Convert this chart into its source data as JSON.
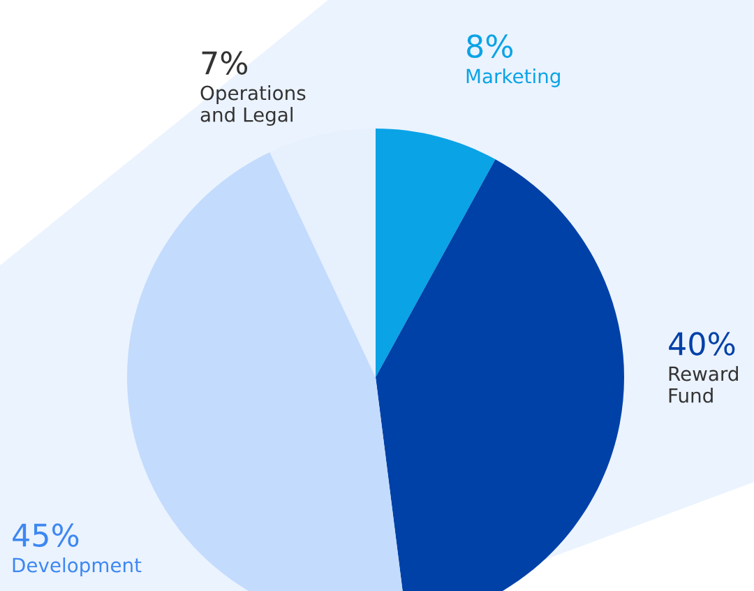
{
  "chart_data": {
    "type": "pie",
    "categories": [
      "Marketing",
      "Reward Fund",
      "Development",
      "Operations and Legal"
    ],
    "values": [
      8,
      40,
      45,
      7
    ],
    "colors": [
      "#0aa3e6",
      "#0041a8",
      "#c3dbfd",
      "#e7f0fd"
    ],
    "value_labels": [
      "8%",
      "40%",
      "45%",
      "7%"
    ],
    "legend": false
  }
}
